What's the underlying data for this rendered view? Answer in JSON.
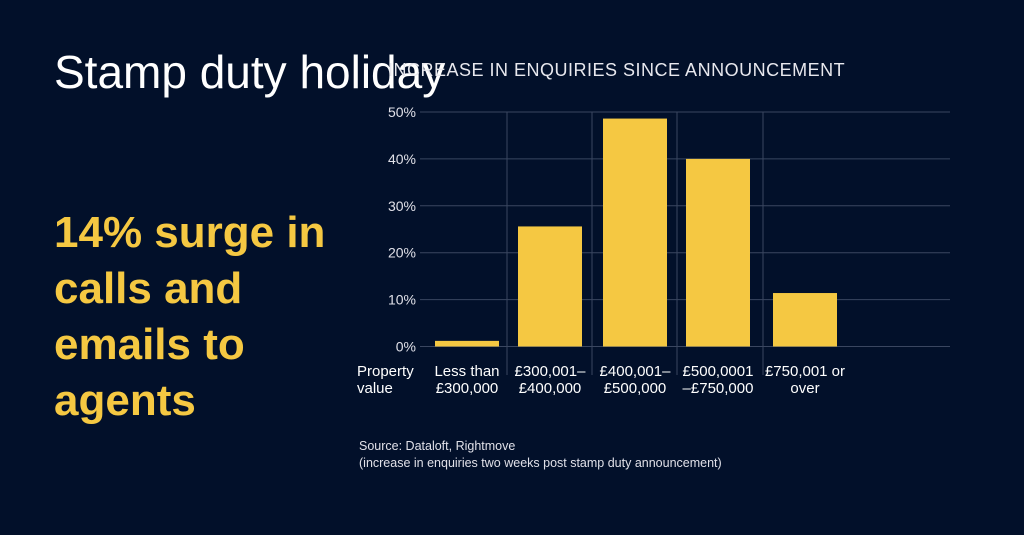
{
  "title": "Stamp duty holiday",
  "headline": "14% surge in calls and emails to agents",
  "source_line1": "Source: Dataloft, Rightmove",
  "source_line2": "(increase in enquiries two weeks post stamp duty announcement)",
  "colors": {
    "background": "#02102a",
    "bar": "#f5c842",
    "headline": "#f5c842"
  },
  "chart_data": {
    "type": "bar",
    "title": "INCREASE IN ENQUIRIES SINCE ANNOUNCEMENT",
    "xlabel": "Property value",
    "ylabel": "",
    "categories": [
      [
        "Less than",
        "£300,000"
      ],
      [
        "£300,001–",
        "£400,000"
      ],
      [
        "£400,001–",
        "£500,000"
      ],
      [
        "£500,0001",
        "–£750,000"
      ],
      [
        "£750,001 or",
        "over"
      ]
    ],
    "values": [
      1.2,
      25.6,
      48.6,
      40.0,
      11.4
    ],
    "ylim": [
      0,
      50
    ],
    "yticks": [
      0,
      10,
      20,
      30,
      40,
      50
    ],
    "ytick_labels": [
      "0%",
      "10%",
      "20%",
      "30%",
      "40%",
      "50%"
    ],
    "grid": true
  }
}
